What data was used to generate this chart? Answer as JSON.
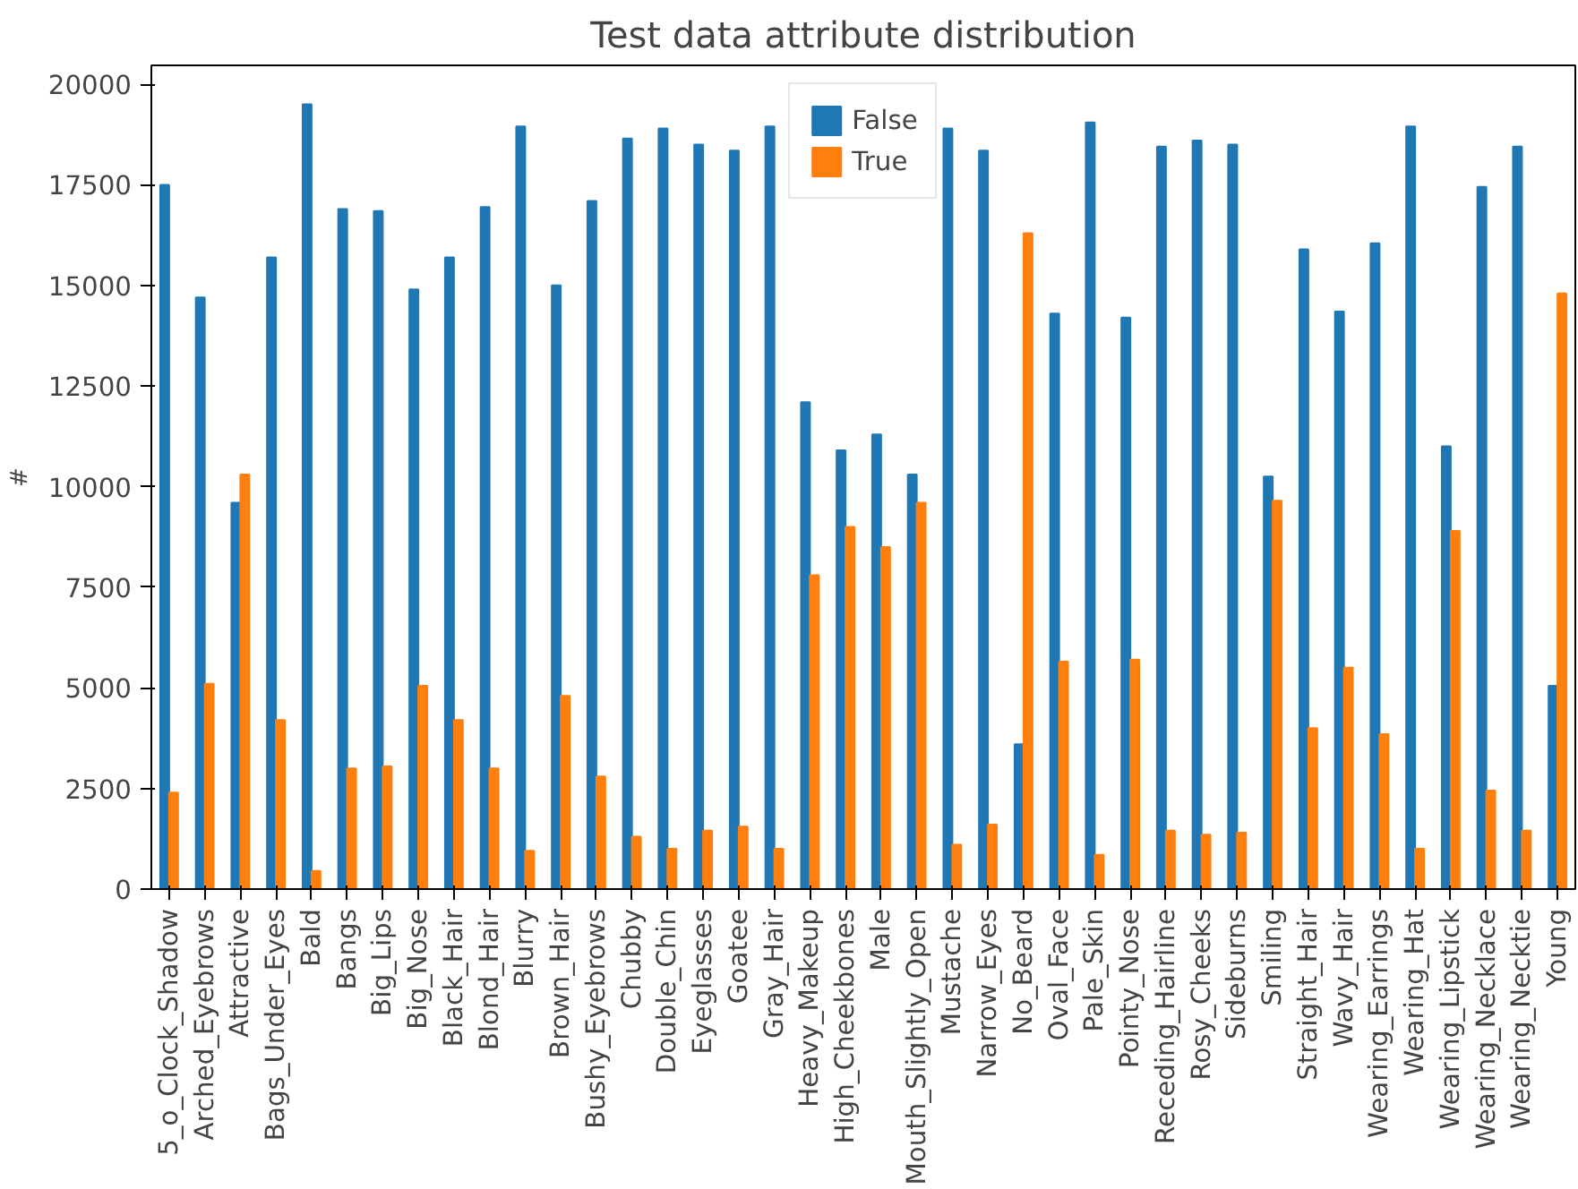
{
  "chart_data": {
    "type": "bar",
    "title": "Test data attribute distribution",
    "ylabel": "#",
    "categories": [
      "5_o_Clock_Shadow",
      "Arched_Eyebrows",
      "Attractive",
      "Bags_Under_Eyes",
      "Bald",
      "Bangs",
      "Big_Lips",
      "Big_Nose",
      "Black_Hair",
      "Blond_Hair",
      "Blurry",
      "Brown_Hair",
      "Bushy_Eyebrows",
      "Chubby",
      "Double_Chin",
      "Eyeglasses",
      "Goatee",
      "Gray_Hair",
      "Heavy_Makeup",
      "High_Cheekbones",
      "Male",
      "Mouth_Slightly_Open",
      "Mustache",
      "Narrow_Eyes",
      "No_Beard",
      "Oval_Face",
      "Pale_Skin",
      "Pointy_Nose",
      "Receding_Hairline",
      "Rosy_Cheeks",
      "Sideburns",
      "Smiling",
      "Straight_Hair",
      "Wavy_Hair",
      "Wearing_Earrings",
      "Wearing_Hat",
      "Wearing_Lipstick",
      "Wearing_Necklace",
      "Wearing_Necktie",
      "Young"
    ],
    "series": [
      {
        "name": "False",
        "color": "#1f77b4",
        "values": [
          17500,
          14700,
          9600,
          15700,
          19500,
          16900,
          16850,
          14900,
          15700,
          16950,
          18950,
          15000,
          17100,
          18650,
          18900,
          18500,
          18350,
          18950,
          12100,
          10900,
          11300,
          10300,
          18900,
          18350,
          3600,
          14300,
          19050,
          14200,
          18450,
          18600,
          18500,
          10250,
          15900,
          14350,
          16050,
          18950,
          11000,
          17450,
          18450,
          5050
        ]
      },
      {
        "name": "True",
        "color": "#ff7f0e",
        "values": [
          2400,
          5100,
          10300,
          4200,
          450,
          3000,
          3050,
          5050,
          4200,
          3000,
          950,
          4800,
          2800,
          1300,
          1000,
          1450,
          1550,
          1000,
          7800,
          9000,
          8500,
          9600,
          1100,
          1600,
          16300,
          5650,
          850,
          5700,
          1450,
          1350,
          1400,
          9650,
          4000,
          5500,
          3850,
          1000,
          8900,
          2450,
          1450,
          14800
        ]
      }
    ],
    "ylim": [
      0,
      20470
    ],
    "yticks": [
      0,
      2500,
      5000,
      7500,
      10000,
      12500,
      15000,
      17500,
      20000
    ],
    "grid": false,
    "legend": "top"
  }
}
